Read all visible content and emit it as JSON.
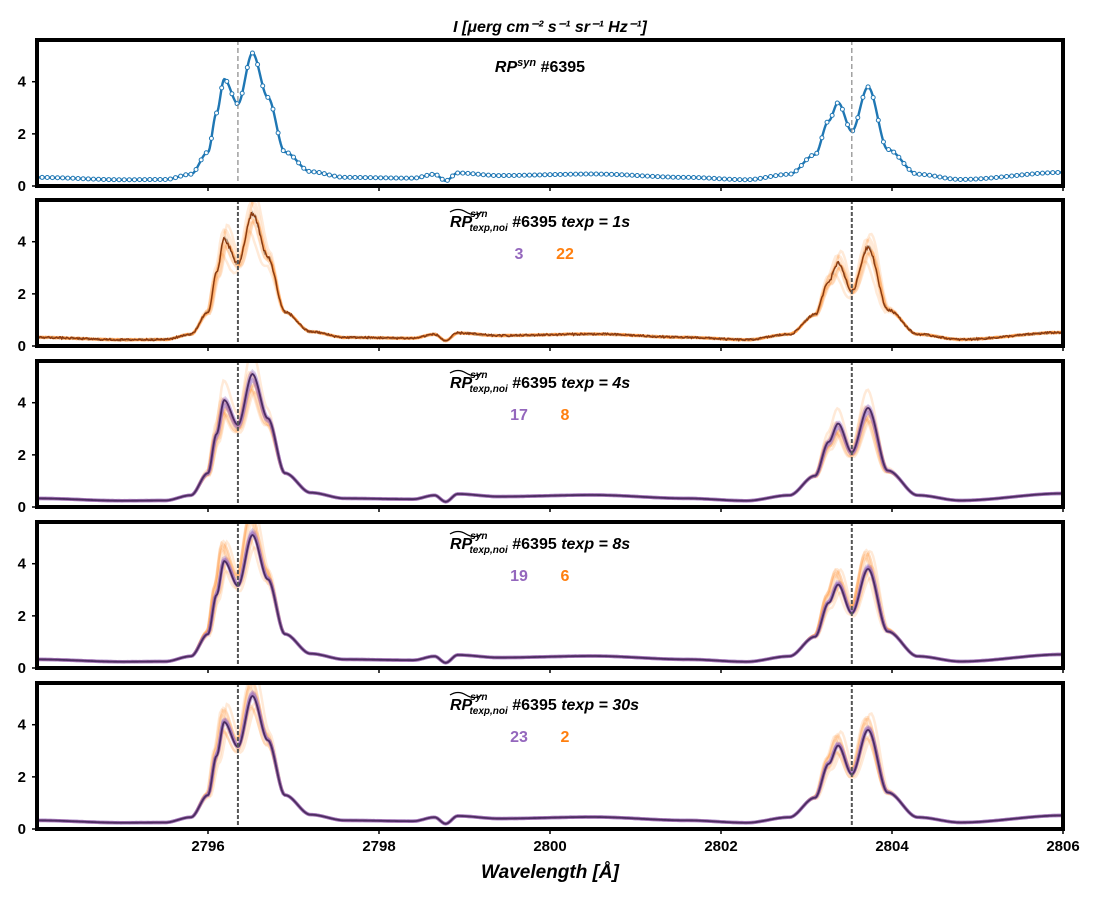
{
  "figure": {
    "ylabel_title": "I [μerg cm⁻² s⁻¹ sr⁻¹ Hz⁻¹]",
    "xlabel": "Wavelength [Å]"
  },
  "chart_data": {
    "type": "line",
    "x_range": [
      2794.0,
      2806.0
    ],
    "y_range": [
      0,
      5.6
    ],
    "x_ticks": [
      2796,
      2798,
      2800,
      2802,
      2804,
      2806
    ],
    "x_tick_labels": [
      "2796",
      "2798",
      "2800",
      "2802",
      "2804",
      "2806"
    ],
    "y_ticks": [
      0,
      2,
      4
    ],
    "y_tick_labels": [
      "0",
      "2",
      "4"
    ],
    "reference_lines": [
      2796.35,
      2803.53
    ],
    "colors": {
      "blue": "#1f77b4",
      "orange": "#ff7f0e",
      "purple": "#9467bd",
      "brown": "#8b3a0f",
      "dark_purple": "#4b2d62"
    },
    "profile_points": [
      {
        "x": 2794.0,
        "y": 0.33
      },
      {
        "x": 2795.0,
        "y": 0.24
      },
      {
        "x": 2795.5,
        "y": 0.25
      },
      {
        "x": 2795.8,
        "y": 0.45
      },
      {
        "x": 2796.0,
        "y": 1.3
      },
      {
        "x": 2796.1,
        "y": 2.8
      },
      {
        "x": 2796.19,
        "y": 4.1
      },
      {
        "x": 2796.35,
        "y": 3.15
      },
      {
        "x": 2796.52,
        "y": 5.1
      },
      {
        "x": 2796.7,
        "y": 3.4
      },
      {
        "x": 2796.9,
        "y": 1.3
      },
      {
        "x": 2797.2,
        "y": 0.55
      },
      {
        "x": 2797.6,
        "y": 0.33
      },
      {
        "x": 2798.4,
        "y": 0.3
      },
      {
        "x": 2798.65,
        "y": 0.45
      },
      {
        "x": 2798.78,
        "y": 0.2
      },
      {
        "x": 2798.92,
        "y": 0.5
      },
      {
        "x": 2799.4,
        "y": 0.4
      },
      {
        "x": 2800.5,
        "y": 0.46
      },
      {
        "x": 2801.6,
        "y": 0.33
      },
      {
        "x": 2802.3,
        "y": 0.24
      },
      {
        "x": 2802.8,
        "y": 0.45
      },
      {
        "x": 2803.1,
        "y": 1.2
      },
      {
        "x": 2803.26,
        "y": 2.5
      },
      {
        "x": 2803.37,
        "y": 3.2
      },
      {
        "x": 2803.53,
        "y": 2.1
      },
      {
        "x": 2803.72,
        "y": 3.8
      },
      {
        "x": 2803.95,
        "y": 1.4
      },
      {
        "x": 2804.3,
        "y": 0.45
      },
      {
        "x": 2804.8,
        "y": 0.25
      },
      {
        "x": 2806.0,
        "y": 0.52
      }
    ],
    "panels": [
      {
        "id": "synthetic",
        "label": "RP",
        "label_sup": "syn",
        "label_suffix": " #6395",
        "texp": "",
        "counts": null
      },
      {
        "id": "texp-1s",
        "label": "RP",
        "label_sup": "syn",
        "label_sub": "texp,noi",
        "label_suffix": " #6395 ",
        "texp": "texp = 1s",
        "counts": {
          "purple": "3",
          "orange": "22"
        }
      },
      {
        "id": "texp-4s",
        "label": "RP",
        "label_sup": "syn",
        "label_sub": "texp,noi",
        "label_suffix": " #6395 ",
        "texp": "texp = 4s",
        "counts": {
          "purple": "17",
          "orange": "8"
        }
      },
      {
        "id": "texp-8s",
        "label": "RP",
        "label_sup": "syn",
        "label_sub": "texp,noi",
        "label_suffix": " #6395 ",
        "texp": "texp = 8s",
        "counts": {
          "purple": "19",
          "orange": "6"
        }
      },
      {
        "id": "texp-30s",
        "label": "RP",
        "label_sup": "syn",
        "label_sub": "texp,noi",
        "label_suffix": " #6395 ",
        "texp": "texp = 30s",
        "counts": {
          "purple": "23",
          "orange": "2"
        }
      }
    ]
  }
}
